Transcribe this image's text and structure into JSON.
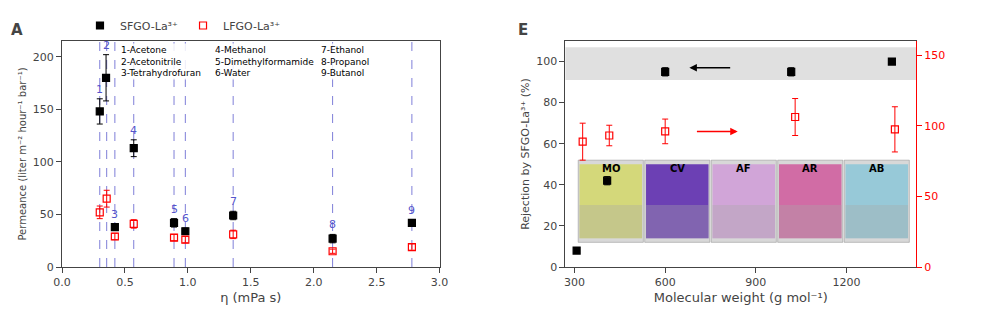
{
  "chart_data": [
    {
      "type": "scatter",
      "title": "A",
      "xlabel": "η (mPa s)",
      "ylabel": "Permeance (liter m⁻² hour⁻¹ bar⁻¹)",
      "xlim": [
        0.0,
        3.0
      ],
      "ylim": [
        0,
        215
      ],
      "xticks": [
        {
          "value": 0.0,
          "label": "0.0"
        },
        0.5,
        {
          "value": 1.0,
          "label": "1.0"
        },
        1.5,
        {
          "value": 2.0,
          "label": "2.0"
        },
        2.5,
        {
          "value": 3.0,
          "label": "3.0"
        }
      ],
      "yticks": [
        0,
        50,
        100,
        150,
        200
      ],
      "grid": false,
      "legend": "top",
      "series": [
        {
          "name": "SFGO-La³⁺",
          "color": "black",
          "marker": "square",
          "x": [
            0.3,
            0.35,
            0.42,
            0.57,
            0.89,
            0.98,
            1.36,
            2.15,
            2.78
          ],
          "values": [
            148,
            180,
            38,
            113,
            42,
            34,
            49,
            27,
            42
          ],
          "error": [
            12,
            22,
            3,
            8,
            4,
            3,
            4,
            4,
            3
          ],
          "point_labels": {
            "texts": [
              "1",
              "2",
              "3",
              "4",
              "5",
              "6",
              "7",
              "8",
              "9"
            ],
            "color": "#5555cc"
          }
        },
        {
          "name": "LFGO-La³⁺",
          "color": "red",
          "marker": "square-open",
          "x": [
            0.3,
            0.355,
            0.42,
            0.57,
            0.89,
            0.98,
            1.36,
            2.15,
            2.78
          ],
          "values": [
            52,
            65,
            29,
            41,
            28,
            26,
            31,
            15,
            19
          ],
          "error": [
            6,
            8,
            3,
            4,
            3,
            3,
            4,
            2,
            3
          ]
        }
      ],
      "vlines": {
        "x": [
          0.3,
          0.355,
          0.42,
          0.57,
          0.89,
          0.98,
          1.36,
          2.15,
          2.78
        ],
        "color": "#5555cc",
        "line_style": "dashed"
      },
      "annotations": [
        {
          "text": "1-Acetone\n2-Acetonitrile\n3-Tetrahydrofuran"
        },
        {
          "text": "4-Methanol\n5-Dimethylformamide\n6-Water"
        },
        {
          "text": "7-Ethanol\n8-Propanol\n9-Butanol"
        }
      ]
    },
    {
      "type": "scatter",
      "title": "E",
      "xlabel": "Molecular weight (g mol⁻¹)",
      "ylabel": "Rejection by SFGO-La³⁺ (%)",
      "xlim": [
        270,
        1430
      ],
      "ylim": [
        0,
        110
      ],
      "xticks": [
        300,
        600,
        900,
        1200
      ],
      "yticks": [
        0,
        20,
        40,
        60,
        80,
        100
      ],
      "y2lim": [
        0,
        160
      ],
      "y2ticks": [
        0,
        50,
        100,
        150
      ],
      "grid": false,
      "series": [
        {
          "color": "black",
          "marker": "square",
          "x": [
            307,
            408,
            600,
            1017,
            1350
          ],
          "values": [
            8,
            42,
            95,
            95,
            100
          ],
          "error": [
            1,
            2,
            2,
            2,
            1
          ]
        },
        {
          "color": "red",
          "marker": "square-open",
          "x": [
            327,
            415,
            600,
            1030,
            1360
          ],
          "values": [
            61,
            64,
            66,
            73,
            67
          ],
          "error": [
            9,
            5,
            6,
            9,
            11
          ]
        }
      ],
      "band": {
        "y": [
          91,
          107
        ],
        "color": "#cccccc"
      },
      "arrows": [
        {
          "x_start": 820,
          "x_end": 680,
          "y": 97,
          "color": "black"
        },
        {
          "x_start": 700,
          "x_end": 840,
          "y": 66,
          "color": "red"
        }
      ],
      "inset": {
        "labels": [
          "MO",
          "CV",
          "AF",
          "AR",
          "AB"
        ],
        "colors": [
          "#d4d870",
          "#6030b0",
          "#d0a0d8",
          "#d060a0",
          "#90c8d8"
        ],
        "xlim": [
          310,
          1410
        ],
        "ylim": [
          12,
          52
        ]
      }
    }
  ]
}
